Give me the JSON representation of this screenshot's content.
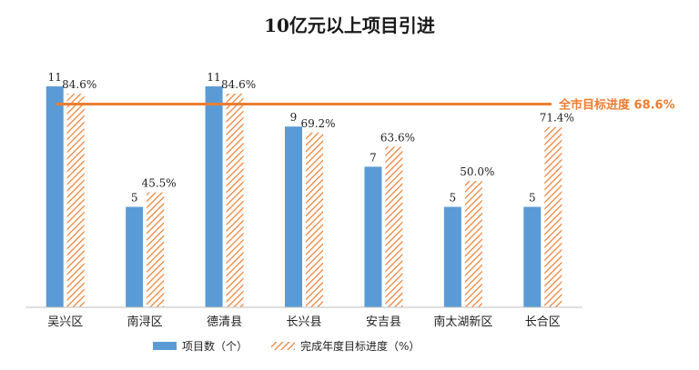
{
  "chart_data": {
    "type": "bar",
    "title": "10亿元以上项目引进",
    "categories": [
      "吴兴区",
      "南浔区",
      "德清县",
      "长兴县",
      "安吉县",
      "南太湖新区",
      "长合区"
    ],
    "series": [
      {
        "name": "项目数（个）",
        "values": [
          11,
          5,
          11,
          9,
          7,
          5,
          5
        ],
        "labels": [
          "11",
          "5",
          "11",
          "9",
          "7",
          "5",
          "5"
        ],
        "color": "#5b9bd5",
        "pattern": "solid"
      },
      {
        "name": "完成年度目标进度（%）",
        "values": [
          84.6,
          45.5,
          84.6,
          69.2,
          63.6,
          50.0,
          71.4
        ],
        "labels": [
          "84.6%",
          "45.5%",
          "84.6%",
          "69.2%",
          "63.6%",
          "50.0%",
          "71.4%"
        ],
        "color": "#ed7d31",
        "pattern": "diagonal-hatch"
      }
    ],
    "target_line": {
      "value": 68.6,
      "label": "全市目标进度 68.6%",
      "color": "#ed7d31"
    },
    "ylim": [
      0,
      13
    ],
    "ylim_percent": [
      0,
      100
    ],
    "legend_position": "bottom",
    "grid": false
  }
}
